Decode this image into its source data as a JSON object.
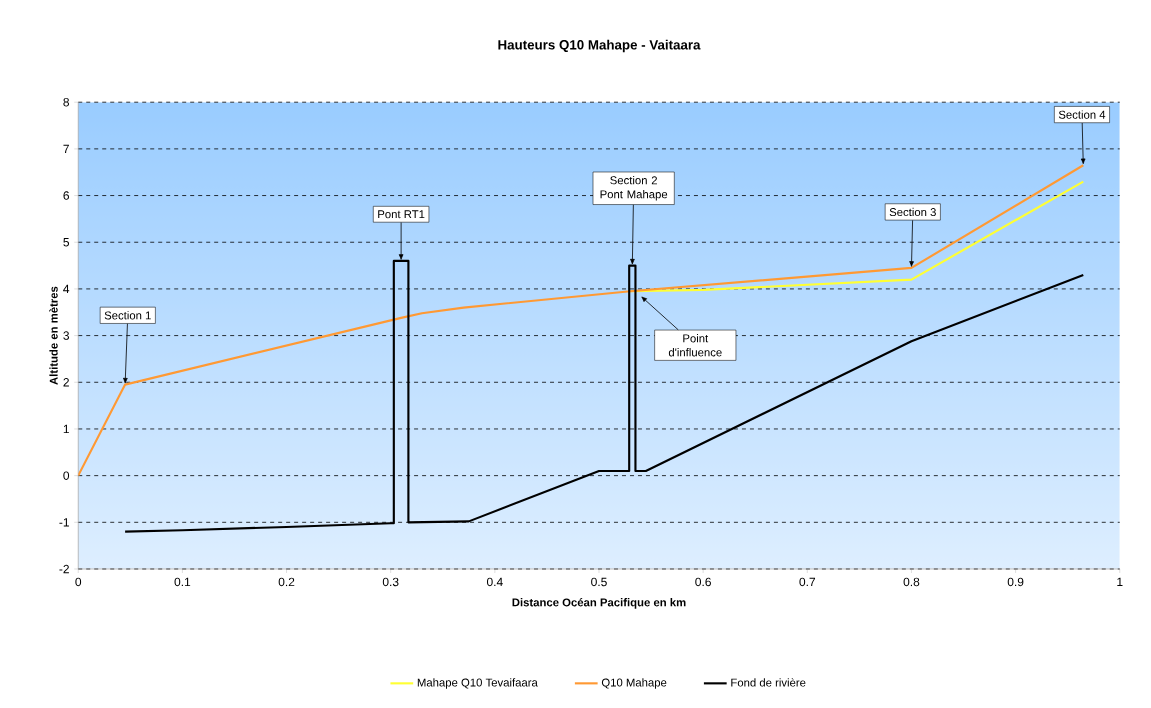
{
  "chart_data": {
    "type": "line",
    "title": "Hauteurs Q10 Mahape - Vaitaara",
    "xlabel": "Distance Océan Pacifique en km",
    "ylabel": "Altitude en mètres",
    "xlim": [
      0,
      1
    ],
    "ylim": [
      -2,
      8
    ],
    "xticks": [
      0,
      0.1,
      0.2,
      0.3,
      0.4,
      0.5,
      0.6,
      0.7,
      0.8,
      0.9,
      1
    ],
    "yticks": [
      -2,
      -1,
      0,
      1,
      2,
      3,
      4,
      5,
      6,
      7,
      8
    ],
    "grid": "y",
    "legend": "bottom",
    "marker": "none",
    "line_style": "solid",
    "series": [
      {
        "name": "Mahape Q10 Tevaifaara",
        "color": "#ffff33",
        "x": [
          0.53,
          0.6,
          0.8,
          0.965
        ],
        "values": [
          3.95,
          3.98,
          4.2,
          6.3
        ]
      },
      {
        "name": "Q10 Mahape",
        "color": "#ff9933",
        "x": [
          0,
          0.045,
          0.31,
          0.33,
          0.37,
          0.53,
          0.8,
          0.965
        ],
        "values": [
          0,
          1.95,
          3.38,
          3.48,
          3.6,
          3.95,
          4.45,
          6.65
        ]
      },
      {
        "name": "Fond de rivière",
        "color": "#000000",
        "x": [
          0.045,
          0.1,
          0.2,
          0.3,
          0.303,
          0.303,
          0.317,
          0.317,
          0.375,
          0.5,
          0.529,
          0.529,
          0.535,
          0.535,
          0.545,
          0.8,
          0.965
        ],
        "values": [
          -1.2,
          -1.17,
          -1.1,
          -1.02,
          -1.02,
          4.6,
          4.6,
          -1.0,
          -0.98,
          0.1,
          0.1,
          4.5,
          4.5,
          0.1,
          0.1,
          2.88,
          4.3
        ]
      }
    ],
    "annotations": [
      {
        "text": "Section 1",
        "x": 0.045,
        "y": 1.95
      },
      {
        "text": "Pont RT1",
        "x": 0.31,
        "y": 4.6
      },
      {
        "text": "Section 2 Pont Mahape",
        "x": 0.532,
        "y": 4.5
      },
      {
        "text": "Point d'influence",
        "x": 0.54,
        "y": 3.85
      },
      {
        "text": "Section 3",
        "x": 0.8,
        "y": 4.45
      },
      {
        "text": "Section 4",
        "x": 0.965,
        "y": 6.65
      }
    ]
  }
}
